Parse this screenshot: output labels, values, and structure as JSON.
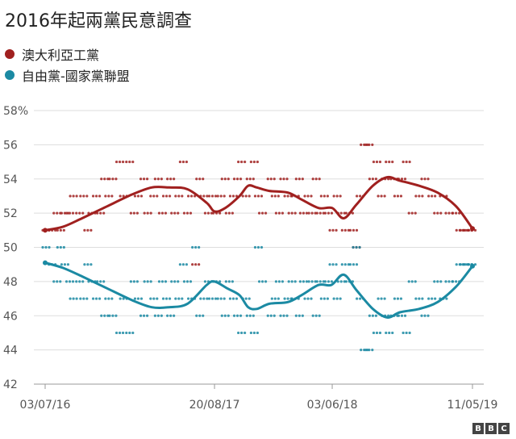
{
  "chart_data": {
    "type": "scatter",
    "title": "2016年起兩黨民意調查",
    "xlabel": "",
    "ylabel": "",
    "x_ticks": [
      "03/07/16",
      "20/08/17",
      "03/06/18",
      "11/05/19"
    ],
    "y_ticks": [
      "58%",
      "56",
      "54",
      "52",
      "50",
      "48",
      "46",
      "44",
      "42"
    ],
    "ylim": [
      42,
      58
    ],
    "grid": true,
    "legend_position": "top-left",
    "series": [
      {
        "name": "澳大利亞工黨",
        "color": "#a0201f",
        "trend": [
          [
            "2016-07-03",
            51.0
          ],
          [
            "2016-08-15",
            51.2
          ],
          [
            "2016-10-01",
            51.7
          ],
          [
            "2016-12-01",
            52.4
          ],
          [
            "2017-02-01",
            53.1
          ],
          [
            "2017-03-20",
            53.5
          ],
          [
            "2017-05-01",
            53.5
          ],
          [
            "2017-06-15",
            53.4
          ],
          [
            "2017-08-01",
            52.6
          ],
          [
            "2017-08-20",
            52.1
          ],
          [
            "2017-09-15",
            52.3
          ],
          [
            "2017-10-20",
            53.0
          ],
          [
            "2017-11-10",
            53.6
          ],
          [
            "2017-12-01",
            53.5
          ],
          [
            "2018-01-01",
            53.3
          ],
          [
            "2018-02-15",
            53.2
          ],
          [
            "2018-03-20",
            52.8
          ],
          [
            "2018-05-01",
            52.3
          ],
          [
            "2018-06-03",
            52.3
          ],
          [
            "2018-07-01",
            51.7
          ],
          [
            "2018-08-01",
            52.5
          ],
          [
            "2018-09-10",
            53.6
          ],
          [
            "2018-10-15",
            54.1
          ],
          [
            "2018-11-15",
            53.9
          ],
          [
            "2019-01-01",
            53.6
          ],
          [
            "2019-02-15",
            53.2
          ],
          [
            "2019-04-01",
            52.4
          ],
          [
            "2019-05-11",
            51.1
          ]
        ],
        "polls": [
          [
            "2016-07-05",
            51
          ],
          [
            "2016-07-20",
            51
          ],
          [
            "2016-08-01",
            52
          ],
          [
            "2016-08-10",
            51
          ],
          [
            "2016-08-20",
            52
          ],
          [
            "2016-09-01",
            52
          ],
          [
            "2016-09-10",
            53
          ],
          [
            "2016-09-25",
            52
          ],
          [
            "2016-10-05",
            53
          ],
          [
            "2016-10-15",
            51
          ],
          [
            "2016-10-25",
            52
          ],
          [
            "2016-11-05",
            53
          ],
          [
            "2016-11-15",
            52
          ],
          [
            "2016-11-25",
            54
          ],
          [
            "2016-12-05",
            53
          ],
          [
            "2016-12-15",
            54
          ],
          [
            "2017-01-01",
            55
          ],
          [
            "2017-01-10",
            53
          ],
          [
            "2017-01-25",
            55
          ],
          [
            "2017-02-05",
            52
          ],
          [
            "2017-02-15",
            53
          ],
          [
            "2017-03-01",
            54
          ],
          [
            "2017-03-10",
            52
          ],
          [
            "2017-03-25",
            53
          ],
          [
            "2017-04-05",
            54
          ],
          [
            "2017-04-15",
            52
          ],
          [
            "2017-04-25",
            53
          ],
          [
            "2017-05-05",
            54
          ],
          [
            "2017-05-15",
            52
          ],
          [
            "2017-05-25",
            53
          ],
          [
            "2017-06-05",
            55
          ],
          [
            "2017-06-15",
            52
          ],
          [
            "2017-06-25",
            53
          ],
          [
            "2017-07-05",
            49
          ],
          [
            "2017-07-15",
            54
          ],
          [
            "2017-07-25",
            53
          ],
          [
            "2017-08-05",
            52
          ],
          [
            "2017-08-15",
            53
          ],
          [
            "2017-08-25",
            52
          ],
          [
            "2017-09-05",
            53
          ],
          [
            "2017-09-15",
            54
          ],
          [
            "2017-09-25",
            52
          ],
          [
            "2017-10-05",
            53
          ],
          [
            "2017-10-15",
            54
          ],
          [
            "2017-10-25",
            55
          ],
          [
            "2017-11-05",
            53
          ],
          [
            "2017-11-15",
            54
          ],
          [
            "2017-11-25",
            55
          ],
          [
            "2017-12-05",
            53
          ],
          [
            "2017-12-15",
            52
          ],
          [
            "2018-01-05",
            54
          ],
          [
            "2018-01-15",
            53
          ],
          [
            "2018-01-25",
            52
          ],
          [
            "2018-02-05",
            54
          ],
          [
            "2018-02-15",
            53
          ],
          [
            "2018-02-25",
            52
          ],
          [
            "2018-03-05",
            53
          ],
          [
            "2018-03-15",
            54
          ],
          [
            "2018-03-25",
            52
          ],
          [
            "2018-04-05",
            53
          ],
          [
            "2018-04-15",
            52
          ],
          [
            "2018-04-25",
            54
          ],
          [
            "2018-05-05",
            52
          ],
          [
            "2018-05-15",
            53
          ],
          [
            "2018-05-25",
            52
          ],
          [
            "2018-06-05",
            51
          ],
          [
            "2018-06-15",
            53
          ],
          [
            "2018-06-25",
            52
          ],
          [
            "2018-07-05",
            51
          ],
          [
            "2018-07-15",
            52
          ],
          [
            "2018-07-25",
            51
          ],
          [
            "2018-08-01",
            50
          ],
          [
            "2018-08-10",
            53
          ],
          [
            "2018-08-20",
            56
          ],
          [
            "2018-09-01",
            56
          ],
          [
            "2018-09-10",
            54
          ],
          [
            "2018-09-20",
            55
          ],
          [
            "2018-10-01",
            53
          ],
          [
            "2018-10-10",
            54
          ],
          [
            "2018-10-20",
            55
          ],
          [
            "2018-11-01",
            54
          ],
          [
            "2018-11-10",
            53
          ],
          [
            "2018-11-20",
            54
          ],
          [
            "2018-12-01",
            55
          ],
          [
            "2018-12-15",
            52
          ],
          [
            "2019-01-01",
            53
          ],
          [
            "2019-01-15",
            54
          ],
          [
            "2019-02-01",
            53
          ],
          [
            "2019-02-15",
            52
          ],
          [
            "2019-03-01",
            53
          ],
          [
            "2019-03-15",
            52
          ],
          [
            "2019-04-01",
            52
          ],
          [
            "2019-04-10",
            51
          ],
          [
            "2019-04-20",
            51
          ],
          [
            "2019-05-01",
            51
          ],
          [
            "2019-05-10",
            51
          ]
        ]
      },
      {
        "name": "自由黨-國家黨聯盟",
        "color": "#1b8aa3",
        "trend": [
          [
            "2016-07-03",
            49.1
          ],
          [
            "2016-08-15",
            48.8
          ],
          [
            "2016-10-01",
            48.3
          ],
          [
            "2016-12-01",
            47.6
          ],
          [
            "2017-02-01",
            46.9
          ],
          [
            "2017-03-20",
            46.5
          ],
          [
            "2017-05-01",
            46.5
          ],
          [
            "2017-06-15",
            46.7
          ],
          [
            "2017-08-01",
            47.8
          ],
          [
            "2017-08-20",
            48.0
          ],
          [
            "2017-09-20",
            47.6
          ],
          [
            "2017-10-20",
            47.2
          ],
          [
            "2017-11-10",
            46.5
          ],
          [
            "2017-12-01",
            46.4
          ],
          [
            "2018-01-01",
            46.7
          ],
          [
            "2018-02-15",
            46.8
          ],
          [
            "2018-03-20",
            47.2
          ],
          [
            "2018-05-01",
            47.8
          ],
          [
            "2018-06-01",
            47.8
          ],
          [
            "2018-07-01",
            48.4
          ],
          [
            "2018-08-01",
            47.5
          ],
          [
            "2018-09-10",
            46.4
          ],
          [
            "2018-10-15",
            45.9
          ],
          [
            "2018-11-15",
            46.2
          ],
          [
            "2019-01-01",
            46.4
          ],
          [
            "2019-02-15",
            46.8
          ],
          [
            "2019-04-01",
            47.7
          ],
          [
            "2019-05-11",
            48.9
          ]
        ],
        "polls": [
          [
            "2016-07-05",
            50
          ],
          [
            "2016-07-20",
            49
          ],
          [
            "2016-08-01",
            48
          ],
          [
            "2016-08-10",
            50
          ],
          [
            "2016-08-20",
            49
          ],
          [
            "2016-09-01",
            48
          ],
          [
            "2016-09-10",
            47
          ],
          [
            "2016-09-25",
            48
          ],
          [
            "2016-10-05",
            47
          ],
          [
            "2016-10-15",
            49
          ],
          [
            "2016-10-25",
            48
          ],
          [
            "2016-11-05",
            47
          ],
          [
            "2016-11-15",
            48
          ],
          [
            "2016-11-25",
            46
          ],
          [
            "2016-12-05",
            47
          ],
          [
            "2016-12-15",
            46
          ],
          [
            "2017-01-01",
            45
          ],
          [
            "2017-01-10",
            47
          ],
          [
            "2017-01-25",
            45
          ],
          [
            "2017-02-05",
            48
          ],
          [
            "2017-02-15",
            47
          ],
          [
            "2017-03-01",
            46
          ],
          [
            "2017-03-10",
            48
          ],
          [
            "2017-03-25",
            47
          ],
          [
            "2017-04-05",
            46
          ],
          [
            "2017-04-15",
            48
          ],
          [
            "2017-04-25",
            47
          ],
          [
            "2017-05-05",
            46
          ],
          [
            "2017-05-15",
            48
          ],
          [
            "2017-05-25",
            47
          ],
          [
            "2017-06-05",
            49
          ],
          [
            "2017-06-15",
            48
          ],
          [
            "2017-06-25",
            47
          ],
          [
            "2017-07-05",
            50
          ],
          [
            "2017-07-15",
            46
          ],
          [
            "2017-07-25",
            47
          ],
          [
            "2017-08-05",
            48
          ],
          [
            "2017-08-15",
            47
          ],
          [
            "2017-08-25",
            48
          ],
          [
            "2017-09-05",
            47
          ],
          [
            "2017-09-15",
            46
          ],
          [
            "2017-09-25",
            48
          ],
          [
            "2017-10-05",
            47
          ],
          [
            "2017-10-15",
            46
          ],
          [
            "2017-10-25",
            45
          ],
          [
            "2017-11-05",
            47
          ],
          [
            "2017-11-15",
            46
          ],
          [
            "2017-11-25",
            45
          ],
          [
            "2017-12-05",
            50
          ],
          [
            "2017-12-15",
            48
          ],
          [
            "2018-01-05",
            46
          ],
          [
            "2018-01-15",
            47
          ],
          [
            "2018-01-25",
            48
          ],
          [
            "2018-02-05",
            46
          ],
          [
            "2018-02-15",
            47
          ],
          [
            "2018-02-25",
            48
          ],
          [
            "2018-03-05",
            47
          ],
          [
            "2018-03-15",
            46
          ],
          [
            "2018-03-25",
            48
          ],
          [
            "2018-04-05",
            47
          ],
          [
            "2018-04-15",
            48
          ],
          [
            "2018-04-25",
            46
          ],
          [
            "2018-05-05",
            48
          ],
          [
            "2018-05-15",
            47
          ],
          [
            "2018-05-25",
            48
          ],
          [
            "2018-06-05",
            49
          ],
          [
            "2018-06-15",
            47
          ],
          [
            "2018-06-25",
            48
          ],
          [
            "2018-07-05",
            49
          ],
          [
            "2018-07-15",
            48
          ],
          [
            "2018-07-25",
            49
          ],
          [
            "2018-08-01",
            50
          ],
          [
            "2018-08-10",
            47
          ],
          [
            "2018-08-20",
            44
          ],
          [
            "2018-09-01",
            44
          ],
          [
            "2018-09-10",
            46
          ],
          [
            "2018-09-20",
            45
          ],
          [
            "2018-10-01",
            47
          ],
          [
            "2018-10-10",
            46
          ],
          [
            "2018-10-20",
            45
          ],
          [
            "2018-11-01",
            46
          ],
          [
            "2018-11-10",
            47
          ],
          [
            "2018-11-20",
            46
          ],
          [
            "2018-12-01",
            45
          ],
          [
            "2018-12-15",
            48
          ],
          [
            "2019-01-01",
            47
          ],
          [
            "2019-01-15",
            46
          ],
          [
            "2019-02-01",
            47
          ],
          [
            "2019-02-15",
            48
          ],
          [
            "2019-03-01",
            47
          ],
          [
            "2019-03-15",
            48
          ],
          [
            "2019-04-01",
            48
          ],
          [
            "2019-04-10",
            49
          ],
          [
            "2019-04-20",
            49
          ],
          [
            "2019-05-01",
            49
          ],
          [
            "2019-05-10",
            49
          ]
        ]
      }
    ]
  },
  "logo": {
    "letters": [
      "B",
      "B",
      "C"
    ]
  }
}
